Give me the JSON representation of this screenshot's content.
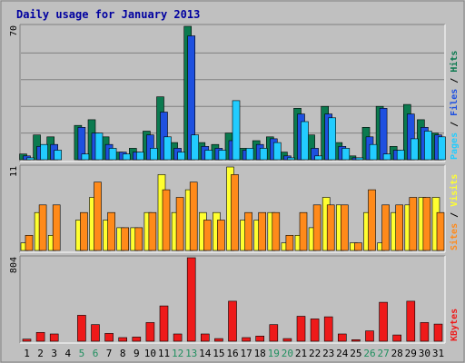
{
  "title": "Daily usage for January 2013",
  "colors": {
    "outer_bg": "#c0c0c0",
    "panel_bg": "#c0c0c0",
    "grid": "#808080",
    "title_text": "#0000a0",
    "hits": "#0b7a4f",
    "files": "#1e50e0",
    "pages": "#22ccff",
    "visits": "#ffff30",
    "sites": "#ff8a1a",
    "kbytes": "#ee1a1a",
    "day_weekday": "#000000",
    "day_weekend": "#1f8f5f"
  },
  "chart_data": [
    {
      "type": "bar",
      "name": "hits-files-pages",
      "ymax_label": "70",
      "ylim": [
        0,
        70
      ],
      "right_label": [
        "Pages",
        "Files",
        "Hits"
      ],
      "categories": [
        "1",
        "2",
        "3",
        "4",
        "5",
        "6",
        "7",
        "8",
        "9",
        "10",
        "11",
        "12",
        "13",
        "14",
        "15",
        "16",
        "17",
        "18",
        "19",
        "20",
        "21",
        "22",
        "23",
        "24",
        "25",
        "26",
        "27",
        "28",
        "29",
        "30",
        "31"
      ],
      "series": [
        {
          "name": "Hits",
          "values": [
            3,
            13,
            12,
            0,
            18,
            21,
            12,
            4,
            6,
            15,
            33,
            9,
            70,
            9,
            8,
            14,
            6,
            10,
            12,
            4,
            27,
            13,
            28,
            9,
            2,
            17,
            28,
            7,
            29,
            21,
            14
          ]
        },
        {
          "name": "Files",
          "values": [
            2,
            7,
            8,
            0,
            17,
            14,
            8,
            4,
            4,
            13,
            25,
            6,
            65,
            7,
            6,
            10,
            5,
            8,
            11,
            2,
            24,
            6,
            24,
            7,
            1,
            12,
            27,
            5,
            24,
            17,
            13
          ]
        },
        {
          "name": "Pages",
          "values": [
            1,
            8,
            5,
            0,
            3,
            14,
            6,
            3,
            4,
            6,
            12,
            4,
            13,
            5,
            5,
            31,
            6,
            6,
            9,
            1,
            20,
            2,
            22,
            6,
            1,
            8,
            3,
            5,
            11,
            15,
            12
          ]
        }
      ]
    },
    {
      "type": "bar",
      "name": "visits-sites",
      "ymax_label": "11",
      "ylim": [
        0,
        11
      ],
      "right_label": [
        "Sites",
        "Visits"
      ],
      "categories": [
        "1",
        "2",
        "3",
        "4",
        "5",
        "6",
        "7",
        "8",
        "9",
        "10",
        "11",
        "12",
        "13",
        "14",
        "15",
        "16",
        "17",
        "18",
        "19",
        "20",
        "21",
        "22",
        "23",
        "24",
        "25",
        "26",
        "27",
        "28",
        "29",
        "30",
        "31"
      ],
      "series": [
        {
          "name": "Visits",
          "values": [
            1,
            5,
            2,
            0,
            4,
            7,
            4,
            3,
            3,
            5,
            10,
            5,
            8,
            5,
            5,
            11,
            4,
            4,
            5,
            1,
            2,
            3,
            7,
            6,
            1,
            5,
            1,
            5,
            6,
            7,
            7
          ]
        },
        {
          "name": "Sites",
          "values": [
            2,
            6,
            6,
            0,
            5,
            9,
            5,
            3,
            3,
            5,
            8,
            7,
            9,
            4,
            4,
            10,
            5,
            5,
            5,
            2,
            5,
            6,
            6,
            6,
            1,
            8,
            6,
            6,
            7,
            7,
            5
          ]
        }
      ]
    },
    {
      "type": "bar",
      "name": "kbytes",
      "ymax_label": "804",
      "ylim": [
        0,
        804
      ],
      "right_label": [
        "KBytes"
      ],
      "categories": [
        "1",
        "2",
        "3",
        "4",
        "5",
        "6",
        "7",
        "8",
        "9",
        "10",
        "11",
        "12",
        "13",
        "14",
        "15",
        "16",
        "17",
        "18",
        "19",
        "20",
        "21",
        "22",
        "23",
        "24",
        "25",
        "26",
        "27",
        "28",
        "29",
        "30",
        "31"
      ],
      "series": [
        {
          "name": "KBytes",
          "values": [
            20,
            85,
            70,
            0,
            250,
            160,
            75,
            35,
            40,
            180,
            340,
            70,
            804,
            70,
            25,
            385,
            35,
            50,
            160,
            25,
            240,
            215,
            235,
            70,
            15,
            100,
            375,
            60,
            385,
            180,
            165
          ]
        }
      ]
    }
  ],
  "weekend_days": [
    "5",
    "6",
    "12",
    "13",
    "19",
    "20",
    "26",
    "27"
  ]
}
